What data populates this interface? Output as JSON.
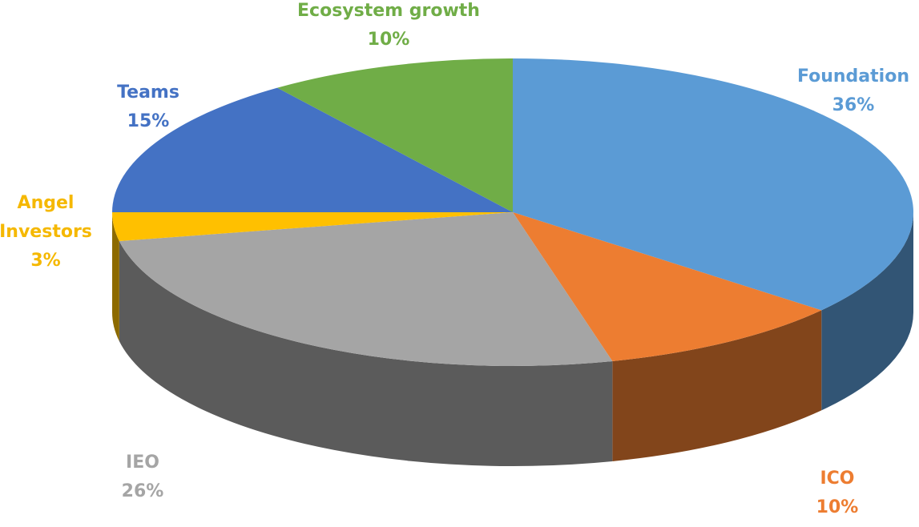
{
  "chart_data": {
    "type": "pie",
    "categories": [
      "Foundation",
      "ICO",
      "IEO",
      "Angel Investors",
      "Teams",
      "Ecosystem growth"
    ],
    "values": [
      36,
      10,
      26,
      3,
      15,
      10
    ],
    "value_labels": [
      "36%",
      "10%",
      "26%",
      "3%",
      "15%",
      "10%"
    ],
    "colors": [
      "#5b9bd5",
      "#ed7d31",
      "#a5a5a5",
      "#ffc000",
      "#4472c4",
      "#70ad47"
    ]
  }
}
